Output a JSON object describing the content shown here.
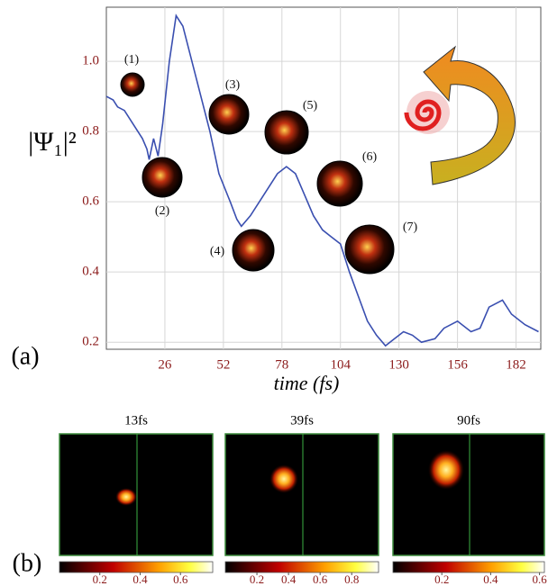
{
  "chart_data": {
    "type": "line",
    "ylabel": "|Ψ₁|²",
    "xlabel": "time (fs)",
    "panel_label": "(a)",
    "x": [
      0,
      3,
      5,
      8,
      12,
      16,
      18,
      19,
      21,
      23,
      25,
      28,
      31,
      34,
      40,
      46,
      50,
      55,
      58,
      60,
      64,
      70,
      76,
      80,
      84,
      88,
      92,
      96,
      100,
      104,
      108,
      112,
      116,
      120,
      124,
      128,
      132,
      136,
      140,
      146,
      150,
      156,
      162,
      166,
      170,
      176,
      180,
      186,
      192
    ],
    "series": [
      {
        "name": "|Ψ₁|²",
        "color": "#3a4fb0",
        "values": [
          0.9,
          0.89,
          0.87,
          0.86,
          0.82,
          0.78,
          0.75,
          0.72,
          0.78,
          0.73,
          0.82,
          1.0,
          1.13,
          1.1,
          0.95,
          0.8,
          0.68,
          0.6,
          0.55,
          0.53,
          0.56,
          0.62,
          0.68,
          0.7,
          0.68,
          0.62,
          0.56,
          0.52,
          0.5,
          0.48,
          0.4,
          0.33,
          0.26,
          0.22,
          0.19,
          0.21,
          0.23,
          0.22,
          0.2,
          0.21,
          0.24,
          0.26,
          0.23,
          0.24,
          0.3,
          0.32,
          0.28,
          0.25,
          0.23
        ]
      }
    ],
    "xlim": [
      0,
      193
    ],
    "ylim": [
      0.18,
      1.154
    ],
    "xticks": [
      26,
      52,
      78,
      104,
      130,
      156,
      182
    ],
    "yticks": [
      0.2,
      0.4,
      0.6,
      0.8,
      {
        "value": 1,
        "label": "1.0"
      }
    ],
    "grid": true,
    "annotations": [
      "(1)",
      "(2)",
      "(3)",
      "(4)",
      "(5)",
      "(6)",
      "(7)"
    ]
  },
  "panel_b": {
    "label": "(b)",
    "maps": [
      {
        "title": "13fs",
        "clim": [
          0,
          0.76
        ],
        "cticks": [
          0.2,
          0.4,
          0.6
        ]
      },
      {
        "title": "39fs",
        "clim": [
          0,
          0.97
        ],
        "cticks": [
          0.2,
          0.4,
          0.6,
          0.8
        ]
      },
      {
        "title": "90fs",
        "clim": [
          0,
          0.62
        ],
        "cticks": [
          0.2,
          0.4,
          0.6
        ]
      }
    ]
  }
}
